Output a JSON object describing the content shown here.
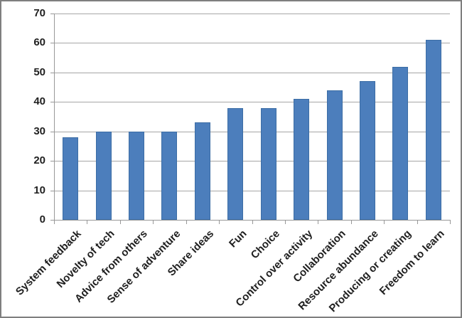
{
  "chart_data": {
    "type": "bar",
    "title": "",
    "xlabel": "",
    "ylabel": "",
    "categories": [
      "System feedback",
      "Novelty of tech",
      "Advice from others",
      "Sense of adventure",
      "Share ideas",
      "Fun",
      "Choice",
      "Control over activity",
      "Collaboration",
      "Resource abundance",
      "Producing or creating",
      "Freedom to learn"
    ],
    "values": [
      28,
      30,
      30,
      30,
      33,
      38,
      38,
      41,
      44,
      47,
      52,
      61
    ],
    "ylim": [
      0,
      70
    ],
    "yticks": [
      0,
      10,
      20,
      30,
      40,
      50,
      60,
      70
    ],
    "grid": true,
    "legend": false,
    "colors": {
      "bar_fill": "#4C7EBC",
      "bar_border": "#3C6DA5",
      "gridline": "#A6A6A6",
      "axis": "#989898",
      "text": "#1F1F1F",
      "frame_border": "#7F7F7F",
      "background": "#FFFFFF"
    }
  }
}
